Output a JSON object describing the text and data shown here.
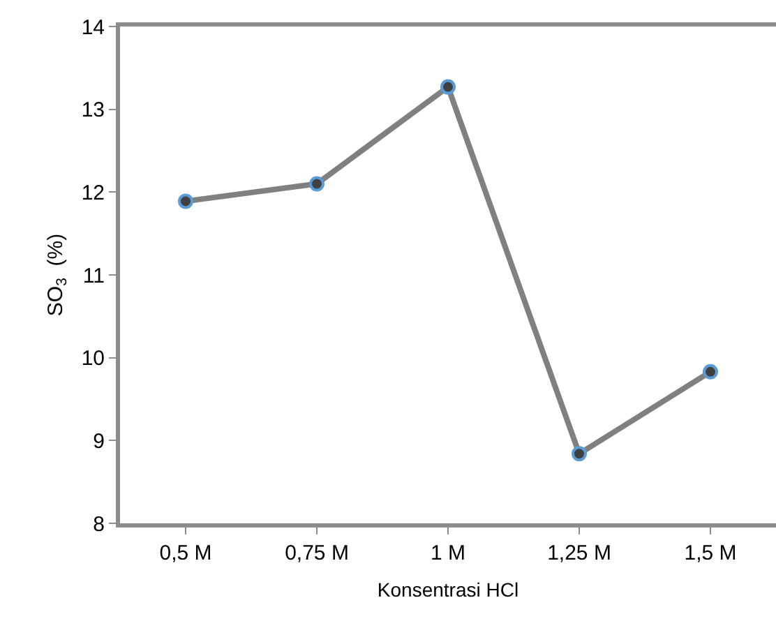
{
  "chart_data": {
    "type": "line",
    "xlabel": "Konsentrasi HCl",
    "ylabel": "SO$_{3}$  (%)",
    "categories": [
      "0,5 M",
      "0,75 M",
      "1 M",
      "1,25 M",
      "1,5 M"
    ],
    "series": [
      {
        "color": "#808080",
        "values": [
          11.89,
          12.1,
          13.27,
          8.84,
          9.83
        ]
      }
    ],
    "ylim": [
      8,
      14
    ],
    "yticks": [
      8,
      9,
      10,
      11,
      12,
      13,
      14
    ],
    "marker": "circle",
    "line_style": "solid"
  }
}
